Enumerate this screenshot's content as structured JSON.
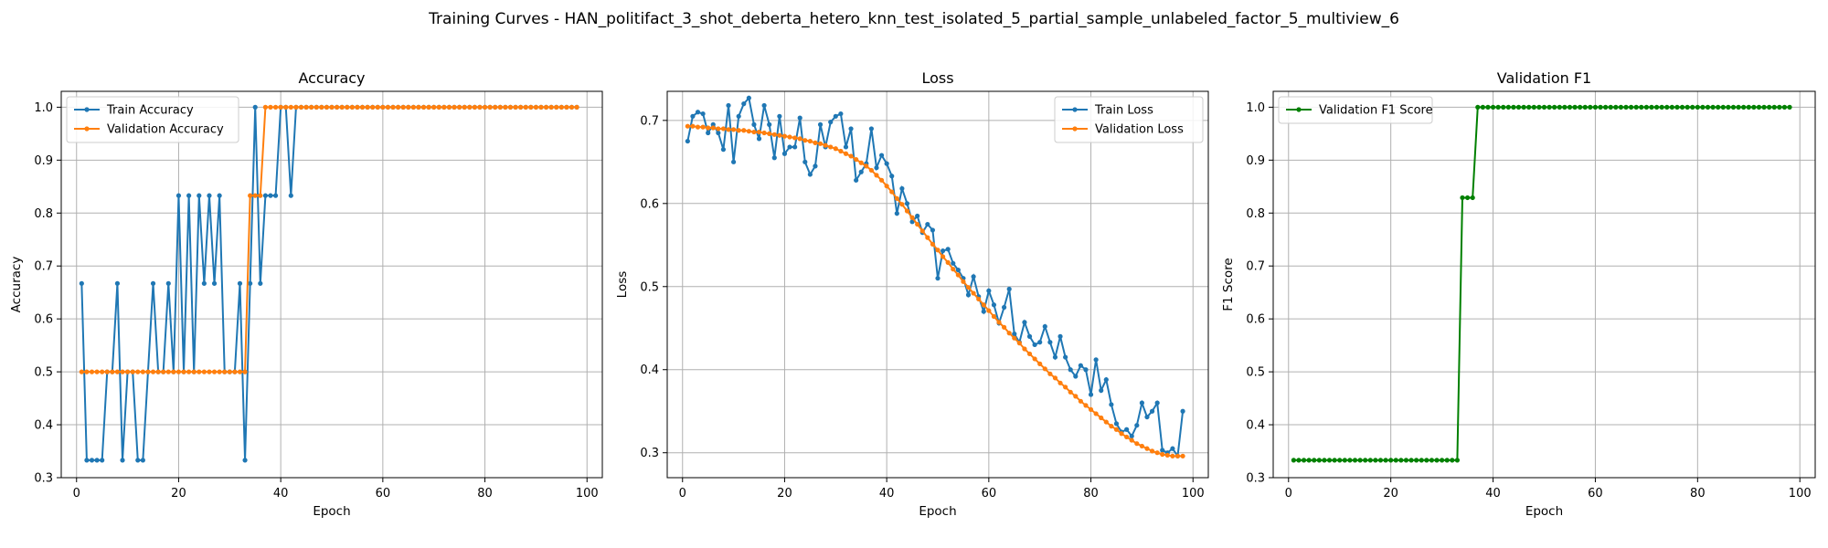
{
  "figure": {
    "suptitle": "Training Curves - HAN_politifact_3_shot_deberta_hetero_knn_test_isolated_5_partial_sample_unlabeled_factor_5_multiview_6"
  },
  "chart_data": [
    {
      "type": "line",
      "title": "Accuracy",
      "xlabel": "Epoch",
      "ylabel": "Accuracy",
      "xlim": [
        -3,
        103
      ],
      "ylim": [
        0.3,
        1.03
      ],
      "xticks": [
        0,
        20,
        40,
        60,
        80,
        100
      ],
      "yticks": [
        0.3,
        0.4,
        0.5,
        0.6,
        0.7,
        0.8,
        0.9,
        1.0
      ],
      "grid": true,
      "legend": "upper left",
      "epochs_range": [
        1,
        98
      ],
      "series": [
        {
          "name": "Train Accuracy",
          "color": "#1f77b4",
          "values": [
            0.667,
            0.333,
            0.333,
            0.333,
            0.333,
            0.5,
            0.5,
            0.667,
            0.333,
            0.5,
            0.5,
            0.333,
            0.333,
            0.5,
            0.667,
            0.5,
            0.5,
            0.667,
            0.5,
            0.833,
            0.5,
            0.833,
            0.5,
            0.833,
            0.667,
            0.833,
            0.667,
            0.833,
            0.5,
            0.5,
            0.5,
            0.667,
            0.333,
            0.667,
            1.0,
            0.667,
            0.833,
            0.833,
            0.833,
            1.0,
            1.0,
            0.833,
            1.0,
            1.0,
            1.0,
            1.0,
            1.0,
            1.0,
            1.0,
            1.0,
            1.0,
            1.0,
            1.0,
            1.0,
            1.0,
            1.0,
            1.0,
            1.0,
            1.0,
            1.0,
            1.0,
            1.0,
            1.0,
            1.0,
            1.0,
            1.0,
            1.0,
            1.0,
            1.0,
            1.0,
            1.0,
            1.0,
            1.0,
            1.0,
            1.0,
            1.0,
            1.0,
            1.0,
            1.0,
            1.0,
            1.0,
            1.0,
            1.0,
            1.0,
            1.0,
            1.0,
            1.0,
            1.0,
            1.0,
            1.0,
            1.0,
            1.0,
            1.0,
            1.0,
            1.0,
            1.0,
            1.0,
            1.0
          ]
        },
        {
          "name": "Validation Accuracy",
          "color": "#ff7f0e",
          "values": [
            0.5,
            0.5,
            0.5,
            0.5,
            0.5,
            0.5,
            0.5,
            0.5,
            0.5,
            0.5,
            0.5,
            0.5,
            0.5,
            0.5,
            0.5,
            0.5,
            0.5,
            0.5,
            0.5,
            0.5,
            0.5,
            0.5,
            0.5,
            0.5,
            0.5,
            0.5,
            0.5,
            0.5,
            0.5,
            0.5,
            0.5,
            0.5,
            0.5,
            0.833,
            0.833,
            0.833,
            1.0,
            1.0,
            1.0,
            1.0,
            1.0,
            1.0,
            1.0,
            1.0,
            1.0,
            1.0,
            1.0,
            1.0,
            1.0,
            1.0,
            1.0,
            1.0,
            1.0,
            1.0,
            1.0,
            1.0,
            1.0,
            1.0,
            1.0,
            1.0,
            1.0,
            1.0,
            1.0,
            1.0,
            1.0,
            1.0,
            1.0,
            1.0,
            1.0,
            1.0,
            1.0,
            1.0,
            1.0,
            1.0,
            1.0,
            1.0,
            1.0,
            1.0,
            1.0,
            1.0,
            1.0,
            1.0,
            1.0,
            1.0,
            1.0,
            1.0,
            1.0,
            1.0,
            1.0,
            1.0,
            1.0,
            1.0,
            1.0,
            1.0,
            1.0,
            1.0,
            1.0,
            1.0
          ]
        }
      ]
    },
    {
      "type": "line",
      "title": "Loss",
      "xlabel": "Epoch",
      "ylabel": "Loss",
      "xlim": [
        -3,
        103
      ],
      "ylim": [
        0.27,
        0.735
      ],
      "xticks": [
        0,
        20,
        40,
        60,
        80,
        100
      ],
      "yticks": [
        0.3,
        0.4,
        0.5,
        0.6,
        0.7
      ],
      "grid": true,
      "legend": "upper right",
      "epochs_range": [
        1,
        98
      ],
      "series": [
        {
          "name": "Train Loss",
          "color": "#1f77b4",
          "values": [
            0.675,
            0.705,
            0.71,
            0.708,
            0.685,
            0.695,
            0.685,
            0.665,
            0.718,
            0.65,
            0.705,
            0.72,
            0.727,
            0.695,
            0.678,
            0.718,
            0.695,
            0.655,
            0.705,
            0.66,
            0.668,
            0.668,
            0.703,
            0.65,
            0.635,
            0.645,
            0.695,
            0.668,
            0.698,
            0.705,
            0.708,
            0.668,
            0.69,
            0.628,
            0.638,
            0.648,
            0.69,
            0.643,
            0.658,
            0.648,
            0.633,
            0.588,
            0.618,
            0.6,
            0.578,
            0.585,
            0.565,
            0.575,
            0.568,
            0.51,
            0.543,
            0.545,
            0.528,
            0.52,
            0.51,
            0.49,
            0.512,
            0.488,
            0.47,
            0.495,
            0.478,
            0.456,
            0.475,
            0.497,
            0.443,
            0.433,
            0.457,
            0.44,
            0.43,
            0.433,
            0.452,
            0.433,
            0.415,
            0.44,
            0.415,
            0.4,
            0.392,
            0.405,
            0.4,
            0.37,
            0.412,
            0.375,
            0.388,
            0.358,
            0.335,
            0.325,
            0.328,
            0.32,
            0.333,
            0.36,
            0.343,
            0.35,
            0.36,
            0.303,
            0.3,
            0.305,
            0.296,
            0.35
          ]
        },
        {
          "name": "Validation Loss",
          "color": "#ff7f0e",
          "values": [
            0.693,
            0.693,
            0.692,
            0.692,
            0.691,
            0.691,
            0.69,
            0.69,
            0.689,
            0.689,
            0.688,
            0.688,
            0.687,
            0.686,
            0.686,
            0.685,
            0.684,
            0.683,
            0.682,
            0.681,
            0.68,
            0.679,
            0.678,
            0.676,
            0.675,
            0.673,
            0.672,
            0.67,
            0.668,
            0.666,
            0.663,
            0.66,
            0.657,
            0.653,
            0.649,
            0.645,
            0.64,
            0.634,
            0.628,
            0.621,
            0.614,
            0.606,
            0.599,
            0.591,
            0.583,
            0.575,
            0.567,
            0.559,
            0.551,
            0.544,
            0.536,
            0.529,
            0.521,
            0.514,
            0.506,
            0.499,
            0.492,
            0.485,
            0.478,
            0.471,
            0.464,
            0.457,
            0.451,
            0.444,
            0.438,
            0.432,
            0.425,
            0.419,
            0.413,
            0.407,
            0.401,
            0.395,
            0.39,
            0.384,
            0.379,
            0.373,
            0.368,
            0.362,
            0.357,
            0.352,
            0.347,
            0.342,
            0.337,
            0.332,
            0.328,
            0.323,
            0.319,
            0.315,
            0.311,
            0.308,
            0.305,
            0.302,
            0.3,
            0.298,
            0.297,
            0.296,
            0.296,
            0.296
          ]
        }
      ]
    },
    {
      "type": "line",
      "title": "Validation F1",
      "xlabel": "Epoch",
      "ylabel": "F1 Score",
      "xlim": [
        -3,
        103
      ],
      "ylim": [
        0.3,
        1.03
      ],
      "xticks": [
        0,
        20,
        40,
        60,
        80,
        100
      ],
      "yticks": [
        0.3,
        0.4,
        0.5,
        0.6,
        0.7,
        0.8,
        0.9,
        1.0
      ],
      "grid": true,
      "legend": "upper left",
      "epochs_range": [
        1,
        98
      ],
      "series": [
        {
          "name": "Validation F1 Score",
          "color": "#008000",
          "values": [
            0.333,
            0.333,
            0.333,
            0.333,
            0.333,
            0.333,
            0.333,
            0.333,
            0.333,
            0.333,
            0.333,
            0.333,
            0.333,
            0.333,
            0.333,
            0.333,
            0.333,
            0.333,
            0.333,
            0.333,
            0.333,
            0.333,
            0.333,
            0.333,
            0.333,
            0.333,
            0.333,
            0.333,
            0.333,
            0.333,
            0.333,
            0.333,
            0.333,
            0.829,
            0.829,
            0.829,
            1.0,
            1.0,
            1.0,
            1.0,
            1.0,
            1.0,
            1.0,
            1.0,
            1.0,
            1.0,
            1.0,
            1.0,
            1.0,
            1.0,
            1.0,
            1.0,
            1.0,
            1.0,
            1.0,
            1.0,
            1.0,
            1.0,
            1.0,
            1.0,
            1.0,
            1.0,
            1.0,
            1.0,
            1.0,
            1.0,
            1.0,
            1.0,
            1.0,
            1.0,
            1.0,
            1.0,
            1.0,
            1.0,
            1.0,
            1.0,
            1.0,
            1.0,
            1.0,
            1.0,
            1.0,
            1.0,
            1.0,
            1.0,
            1.0,
            1.0,
            1.0,
            1.0,
            1.0,
            1.0,
            1.0,
            1.0,
            1.0,
            1.0,
            1.0,
            1.0,
            1.0,
            1.0
          ]
        }
      ]
    }
  ]
}
